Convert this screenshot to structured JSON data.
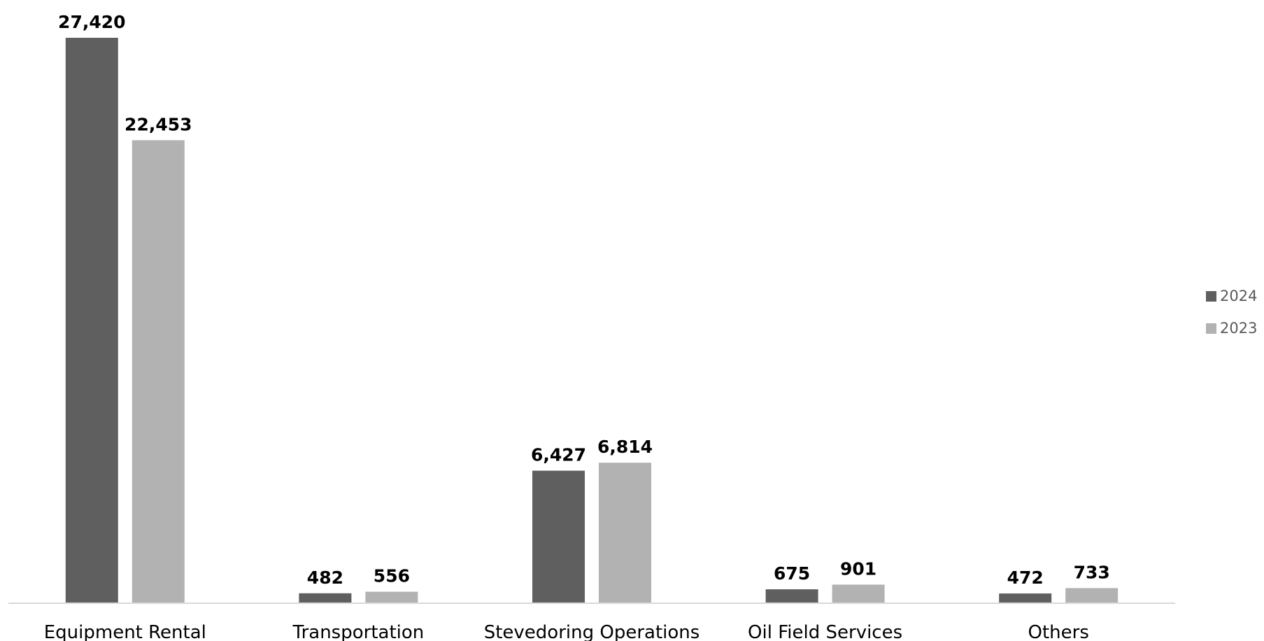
{
  "chart_data": {
    "type": "bar",
    "categories": [
      "Equipment Rental",
      "Transportation",
      "Stevedoring Operations",
      "Oil Field Services",
      "Others"
    ],
    "series": [
      {
        "name": "2024",
        "values": [
          27420,
          482,
          6427,
          675,
          472
        ],
        "labels": [
          "27,420",
          "482",
          "6,427",
          "675",
          "472"
        ],
        "color": "#5f5f5f"
      },
      {
        "name": "2023",
        "values": [
          22453,
          556,
          6814,
          901,
          733
        ],
        "labels": [
          "22,453",
          "556",
          "6,814",
          "901",
          "733"
        ],
        "color": "#b2b2b2"
      }
    ],
    "ylim": [
      0,
      27420
    ],
    "grid": false,
    "legend": "right",
    "data_labels": true
  }
}
